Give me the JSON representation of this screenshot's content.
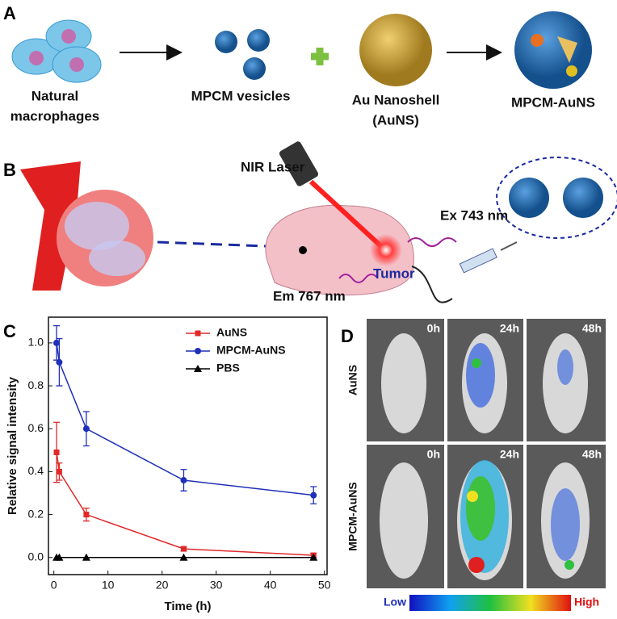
{
  "panel_a": {
    "label": "A",
    "macrophages": [
      "Natural",
      "macrophages"
    ],
    "vesicles": "MPCM vesicles",
    "nanoshell": [
      "Au Nanoshell",
      "(AuNS)"
    ],
    "product": "MPCM-AuNS"
  },
  "panel_b": {
    "label": "B",
    "laser": "NIR Laser",
    "excitation": "Ex 743 nm",
    "tumor": "Tumor",
    "emission": "Em 767 nm"
  },
  "chart_data": {
    "type": "line",
    "label": "C",
    "xlabel": "Time (h)",
    "ylabel": "Relative signal intensity",
    "x": [
      0.5,
      1,
      6,
      24,
      48
    ],
    "series": [
      {
        "name": "AuNS",
        "color": "#e02828",
        "marker": "square",
        "values": [
          0.49,
          0.4,
          0.2,
          0.04,
          0.01
        ],
        "errors": [
          0.14,
          0.04,
          0.03,
          0.01,
          0.01
        ]
      },
      {
        "name": "MPCM-AuNS",
        "color": "#1f2fb8",
        "marker": "circle",
        "values": [
          1.0,
          0.91,
          0.6,
          0.36,
          0.29
        ],
        "errors": [
          0.08,
          0.11,
          0.08,
          0.05,
          0.04
        ]
      },
      {
        "name": "PBS",
        "color": "#000000",
        "marker": "triangle",
        "values": [
          0,
          0,
          0,
          0,
          0
        ],
        "errors": [
          0,
          0,
          0,
          0,
          0
        ]
      }
    ],
    "xlim": [
      -1,
      50.5
    ],
    "xticks": [
      0,
      10,
      20,
      30,
      40,
      50
    ],
    "ylim": [
      -0.08,
      1.12
    ],
    "yticks": [
      {
        "value": 0,
        "label": "0.0"
      },
      0.2,
      0.4,
      0.6,
      0.8,
      {
        "value": 1,
        "label": "1.0"
      }
    ],
    "legend": "upper right"
  },
  "panel_d": {
    "label": "D",
    "columns": [
      "0h",
      "24h",
      "48h"
    ],
    "rows": [
      "AuNS",
      "MPCM-AuNS"
    ],
    "colorbar": {
      "low": "Low",
      "high": "High"
    }
  }
}
